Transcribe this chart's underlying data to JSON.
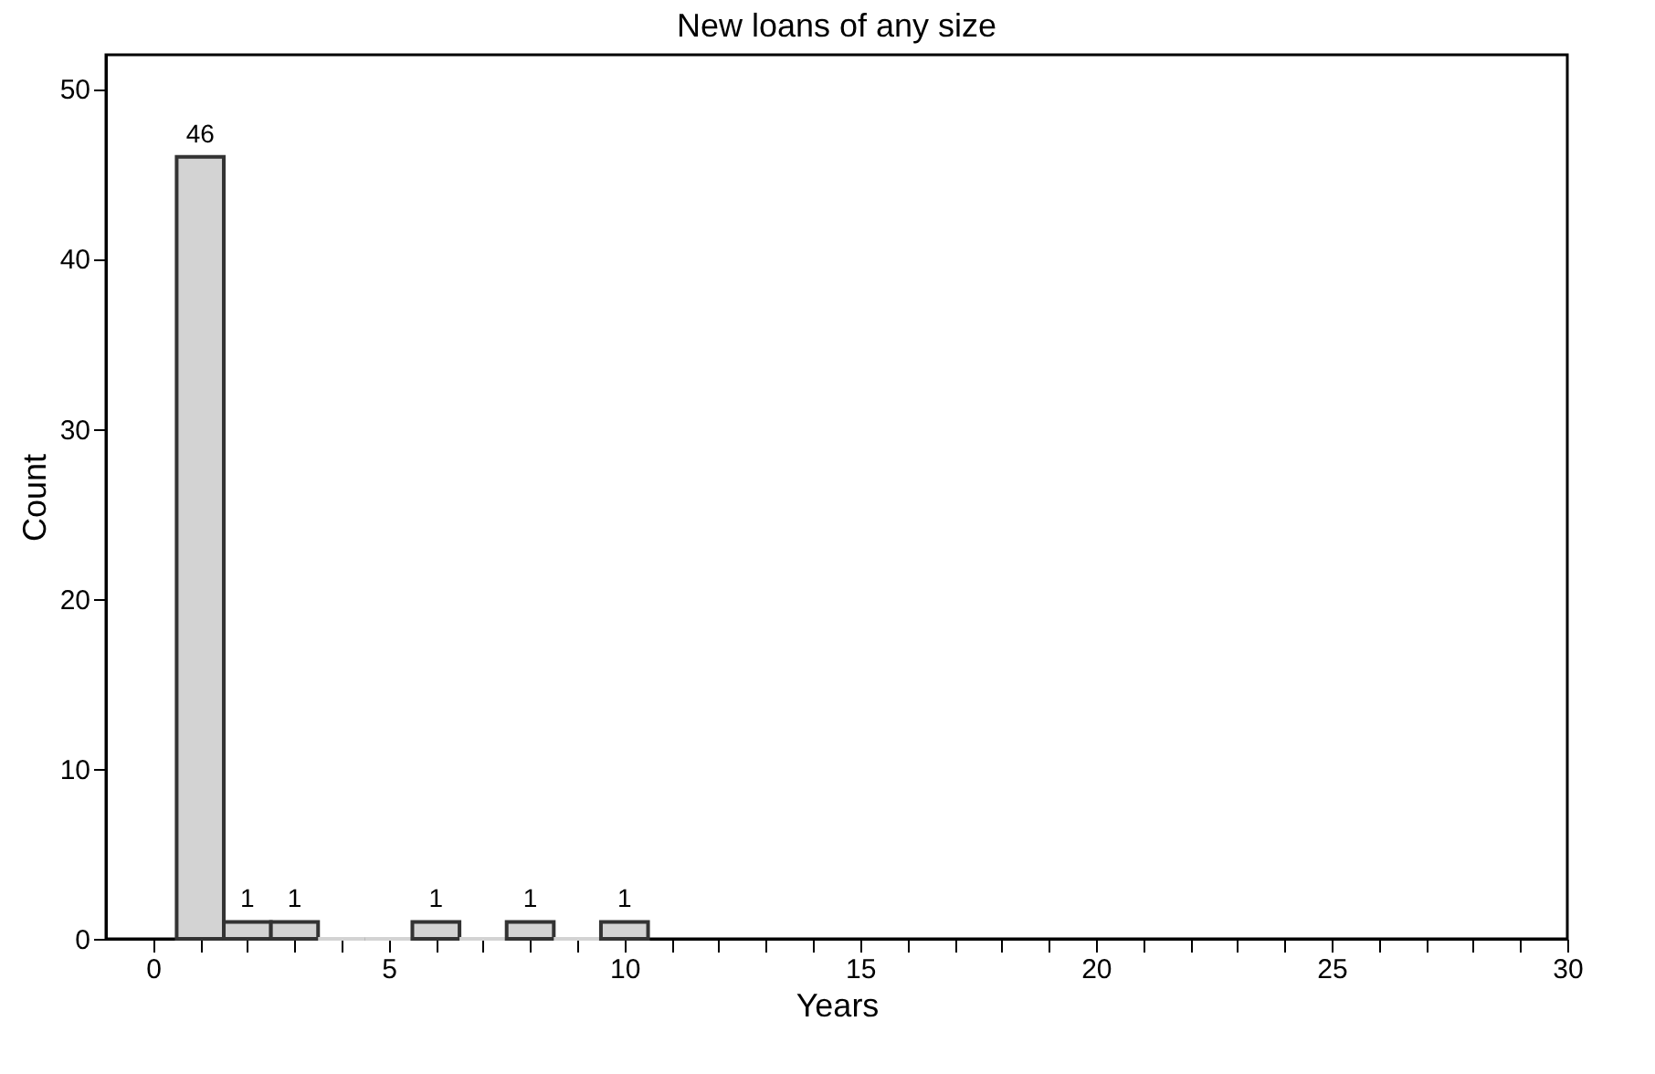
{
  "chart_data": {
    "type": "histogram",
    "title": "New loans of any size",
    "xlabel": "Years",
    "ylabel": "Count",
    "bins": [
      0.5,
      1.5,
      2.5,
      3.5,
      4.5,
      5.5,
      6.5,
      7.5,
      8.5,
      9.5,
      10.5
    ],
    "values": [
      46,
      1,
      1,
      0,
      0,
      1,
      0,
      1,
      0,
      1
    ],
    "value_labels": [
      "46",
      "1",
      "1",
      null,
      null,
      "1",
      null,
      "1",
      null,
      "1"
    ],
    "color": "#d3d3d3",
    "xlim": [
      -1,
      30
    ],
    "ylim": [
      0,
      52
    ],
    "xticks": [
      0,
      {
        "value": 1,
        "label": null
      },
      {
        "value": 2,
        "label": null
      },
      {
        "value": 3,
        "label": null
      },
      {
        "value": 4,
        "label": null
      },
      5,
      {
        "value": 6,
        "label": null
      },
      {
        "value": 7,
        "label": null
      },
      {
        "value": 8,
        "label": null
      },
      {
        "value": 9,
        "label": null
      },
      10,
      {
        "value": 11,
        "label": null
      },
      {
        "value": 12,
        "label": null
      },
      {
        "value": 13,
        "label": null
      },
      {
        "value": 14,
        "label": null
      },
      15,
      {
        "value": 16,
        "label": null
      },
      {
        "value": 17,
        "label": null
      },
      {
        "value": 18,
        "label": null
      },
      {
        "value": 19,
        "label": null
      },
      20,
      {
        "value": 21,
        "label": null
      },
      {
        "value": 22,
        "label": null
      },
      {
        "value": 23,
        "label": null
      },
      {
        "value": 24,
        "label": null
      },
      25,
      {
        "value": 26,
        "label": null
      },
      {
        "value": 27,
        "label": null
      },
      {
        "value": 28,
        "label": null
      },
      {
        "value": 29,
        "label": null
      },
      30
    ],
    "yticks": [
      0,
      10,
      20,
      30,
      40,
      50
    ],
    "grid": false
  }
}
